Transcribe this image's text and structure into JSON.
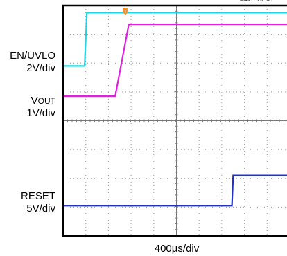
{
  "chart_data": {
    "type": "line",
    "figure_id": "MAX17502 toc",
    "xlabel": "400µs/div",
    "time_per_div_us": 400,
    "grid": true,
    "h_divs": 10,
    "v_divs": 8,
    "trigger_marker": "T",
    "channels": [
      {
        "name_line1": "EN/UVLO",
        "name_sub": "",
        "scale": "2V/div",
        "color": "#1ad6e6",
        "points_div": [
          [
            0.0,
            5.9
          ],
          [
            0.95,
            5.9
          ],
          [
            1.05,
            7.75
          ],
          [
            10.0,
            7.75
          ]
        ]
      },
      {
        "name_line1": "V",
        "name_sub": "OUT",
        "scale": "1V/div",
        "color": "#e020e0",
        "points_div": [
          [
            0.0,
            4.85
          ],
          [
            2.3,
            4.85
          ],
          [
            2.9,
            7.35
          ],
          [
            10.0,
            7.35
          ]
        ]
      },
      {
        "name_line1": "RESET",
        "name_sub": "",
        "overline": true,
        "scale": "5V/div",
        "color": "#1f2fd0",
        "points_div": [
          [
            0.0,
            1.05
          ],
          [
            7.45,
            1.05
          ],
          [
            7.5,
            2.1
          ],
          [
            10.0,
            2.1
          ]
        ]
      }
    ]
  }
}
